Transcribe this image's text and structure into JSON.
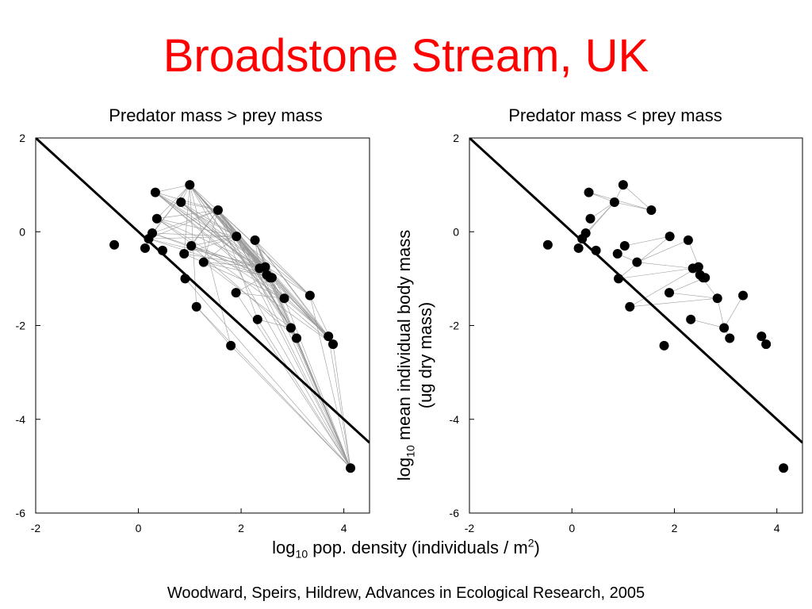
{
  "title": "Broadstone Stream, UK",
  "y_label": {
    "line1_pre": "log",
    "line1_sub": "10",
    "line1_post": " mean individual body mass",
    "line2": "(ug dry mass)"
  },
  "x_label": {
    "pre": "log",
    "sub": "10",
    "mid": " pop. density (individuals / m",
    "sup": "2",
    "post": ")"
  },
  "source": "Woodward, Speirs, Hildrew, Advances in Ecological Research, 2005",
  "chart_data": [
    {
      "type": "scatter",
      "title": "Predator mass > prey mass",
      "xlim": [
        -2,
        4.5
      ],
      "ylim": [
        -6,
        2
      ],
      "xticks": [
        -2,
        0,
        2,
        4
      ],
      "yticks": [
        2,
        0,
        -2,
        -4,
        -6
      ],
      "reference_line": {
        "slope": -1,
        "intercept": 0
      },
      "points": [
        {
          "x": -0.47,
          "y": -0.28
        },
        {
          "x": 0.13,
          "y": -0.35
        },
        {
          "x": 0.2,
          "y": -0.15
        },
        {
          "x": 0.27,
          "y": -0.03
        },
        {
          "x": 0.33,
          "y": 0.84
        },
        {
          "x": 0.36,
          "y": 0.28
        },
        {
          "x": 0.47,
          "y": -0.4
        },
        {
          "x": 0.83,
          "y": 0.63
        },
        {
          "x": 0.89,
          "y": -0.47
        },
        {
          "x": 0.91,
          "y": -1.0
        },
        {
          "x": 1.0,
          "y": 1.0
        },
        {
          "x": 1.03,
          "y": -0.3
        },
        {
          "x": 1.13,
          "y": -1.6
        },
        {
          "x": 1.27,
          "y": -0.65
        },
        {
          "x": 1.55,
          "y": 0.46
        },
        {
          "x": 1.8,
          "y": -2.43
        },
        {
          "x": 1.9,
          "y": -1.3
        },
        {
          "x": 1.91,
          "y": -0.1
        },
        {
          "x": 2.27,
          "y": -0.18
        },
        {
          "x": 2.32,
          "y": -1.87
        },
        {
          "x": 2.36,
          "y": -0.78
        },
        {
          "x": 2.47,
          "y": -0.75
        },
        {
          "x": 2.5,
          "y": -0.92
        },
        {
          "x": 2.56,
          "y": -0.98
        },
        {
          "x": 2.6,
          "y": -0.98
        },
        {
          "x": 2.84,
          "y": -1.42
        },
        {
          "x": 2.97,
          "y": -2.05
        },
        {
          "x": 3.08,
          "y": -2.27
        },
        {
          "x": 3.34,
          "y": -1.36
        },
        {
          "x": 3.7,
          "y": -2.23
        },
        {
          "x": 3.79,
          "y": -2.4
        },
        {
          "x": 4.13,
          "y": -5.04
        }
      ],
      "links": [
        [
          10,
          12
        ],
        [
          10,
          15
        ],
        [
          10,
          17
        ],
        [
          10,
          20
        ],
        [
          10,
          21
        ],
        [
          10,
          22
        ],
        [
          10,
          23
        ],
        [
          10,
          24
        ],
        [
          10,
          25
        ],
        [
          10,
          26
        ],
        [
          10,
          27
        ],
        [
          10,
          28
        ],
        [
          10,
          29
        ],
        [
          10,
          30
        ],
        [
          10,
          31
        ],
        [
          14,
          17
        ],
        [
          14,
          19
        ],
        [
          14,
          20
        ],
        [
          14,
          21
        ],
        [
          14,
          22
        ],
        [
          14,
          23
        ],
        [
          14,
          24
        ],
        [
          14,
          25
        ],
        [
          14,
          26
        ],
        [
          14,
          27
        ],
        [
          14,
          28
        ],
        [
          14,
          29
        ],
        [
          14,
          30
        ],
        [
          14,
          31
        ],
        [
          4,
          10
        ],
        [
          4,
          14
        ],
        [
          4,
          17
        ],
        [
          4,
          20
        ],
        [
          4,
          22
        ],
        [
          4,
          25
        ],
        [
          4,
          28
        ],
        [
          4,
          30
        ],
        [
          7,
          10
        ],
        [
          7,
          14
        ],
        [
          7,
          17
        ],
        [
          7,
          20
        ],
        [
          7,
          21
        ],
        [
          7,
          25
        ],
        [
          7,
          29
        ],
        [
          5,
          10
        ],
        [
          5,
          14
        ],
        [
          5,
          17
        ],
        [
          5,
          21
        ],
        [
          5,
          25
        ],
        [
          5,
          30
        ],
        [
          3,
          10
        ],
        [
          3,
          14
        ],
        [
          3,
          17
        ],
        [
          3,
          20
        ],
        [
          3,
          22
        ],
        [
          2,
          10
        ],
        [
          2,
          14
        ],
        [
          2,
          17
        ],
        [
          2,
          21
        ],
        [
          2,
          23
        ],
        [
          8,
          10
        ],
        [
          8,
          14
        ],
        [
          8,
          17
        ],
        [
          8,
          21
        ],
        [
          8,
          25
        ],
        [
          11,
          14
        ],
        [
          11,
          17
        ],
        [
          11,
          20
        ],
        [
          11,
          23
        ],
        [
          11,
          27
        ],
        [
          13,
          14
        ],
        [
          13,
          17
        ],
        [
          13,
          21
        ],
        [
          13,
          24
        ],
        [
          13,
          26
        ],
        [
          17,
          20
        ],
        [
          17,
          21
        ],
        [
          17,
          22
        ],
        [
          17,
          23
        ],
        [
          17,
          24
        ],
        [
          17,
          25
        ],
        [
          17,
          26
        ],
        [
          17,
          27
        ],
        [
          17,
          28
        ],
        [
          17,
          29
        ],
        [
          17,
          30
        ],
        [
          17,
          31
        ],
        [
          18,
          20
        ],
        [
          18,
          21
        ],
        [
          18,
          23
        ],
        [
          18,
          24
        ],
        [
          18,
          25
        ],
        [
          18,
          28
        ],
        [
          18,
          29
        ],
        [
          18,
          30
        ],
        [
          18,
          31
        ],
        [
          20,
          31
        ],
        [
          21,
          31
        ],
        [
          22,
          31
        ],
        [
          23,
          31
        ],
        [
          24,
          31
        ],
        [
          25,
          31
        ],
        [
          26,
          31
        ],
        [
          27,
          31
        ],
        [
          28,
          31
        ],
        [
          29,
          31
        ],
        [
          30,
          31
        ],
        [
          16,
          31
        ],
        [
          19,
          31
        ],
        [
          15,
          31
        ],
        [
          12,
          31
        ],
        [
          9,
          31
        ],
        [
          20,
          25
        ],
        [
          21,
          26
        ],
        [
          22,
          27
        ],
        [
          23,
          29
        ],
        [
          24,
          30
        ],
        [
          25,
          29
        ],
        [
          28,
          30
        ],
        [
          16,
          25
        ],
        [
          16,
          22
        ],
        [
          19,
          26
        ],
        [
          12,
          15
        ]
      ]
    },
    {
      "type": "scatter",
      "title": "Predator mass < prey mass",
      "xlim": [
        -2,
        4.5
      ],
      "ylim": [
        -6,
        2
      ],
      "xticks": [
        -2,
        0,
        2,
        4
      ],
      "yticks": [
        2,
        0,
        -2,
        -4,
        -6
      ],
      "reference_line": {
        "slope": -1,
        "intercept": 0
      },
      "points": [
        {
          "x": -0.47,
          "y": -0.28
        },
        {
          "x": 0.13,
          "y": -0.35
        },
        {
          "x": 0.2,
          "y": -0.15
        },
        {
          "x": 0.27,
          "y": -0.03
        },
        {
          "x": 0.33,
          "y": 0.84
        },
        {
          "x": 0.36,
          "y": 0.28
        },
        {
          "x": 0.47,
          "y": -0.4
        },
        {
          "x": 0.83,
          "y": 0.63
        },
        {
          "x": 0.89,
          "y": -0.47
        },
        {
          "x": 0.91,
          "y": -1.0
        },
        {
          "x": 1.0,
          "y": 1.0
        },
        {
          "x": 1.03,
          "y": -0.3
        },
        {
          "x": 1.13,
          "y": -1.6
        },
        {
          "x": 1.27,
          "y": -0.65
        },
        {
          "x": 1.55,
          "y": 0.46
        },
        {
          "x": 1.8,
          "y": -2.43
        },
        {
          "x": 1.9,
          "y": -1.3
        },
        {
          "x": 1.91,
          "y": -0.1
        },
        {
          "x": 2.27,
          "y": -0.18
        },
        {
          "x": 2.32,
          "y": -1.87
        },
        {
          "x": 2.36,
          "y": -0.78
        },
        {
          "x": 2.47,
          "y": -0.75
        },
        {
          "x": 2.5,
          "y": -0.92
        },
        {
          "x": 2.56,
          "y": -0.98
        },
        {
          "x": 2.6,
          "y": -0.98
        },
        {
          "x": 2.84,
          "y": -1.42
        },
        {
          "x": 2.97,
          "y": -2.05
        },
        {
          "x": 3.08,
          "y": -2.27
        },
        {
          "x": 3.34,
          "y": -1.36
        },
        {
          "x": 3.7,
          "y": -2.23
        },
        {
          "x": 3.79,
          "y": -2.4
        },
        {
          "x": 4.13,
          "y": -5.04
        }
      ],
      "links": [
        [
          4,
          7
        ],
        [
          4,
          14
        ],
        [
          7,
          10
        ],
        [
          5,
          7
        ],
        [
          7,
          14
        ],
        [
          10,
          14
        ],
        [
          3,
          7
        ],
        [
          2,
          7
        ],
        [
          9,
          17
        ],
        [
          9,
          20
        ],
        [
          12,
          25
        ],
        [
          12,
          21
        ],
        [
          13,
          18
        ],
        [
          13,
          20
        ],
        [
          16,
          24
        ],
        [
          16,
          25
        ],
        [
          19,
          26
        ],
        [
          25,
          26
        ],
        [
          26,
          27
        ],
        [
          26,
          28
        ],
        [
          20,
          22
        ],
        [
          21,
          24
        ],
        [
          22,
          25
        ],
        [
          18,
          23
        ],
        [
          11,
          17
        ],
        [
          8,
          13
        ]
      ]
    }
  ]
}
